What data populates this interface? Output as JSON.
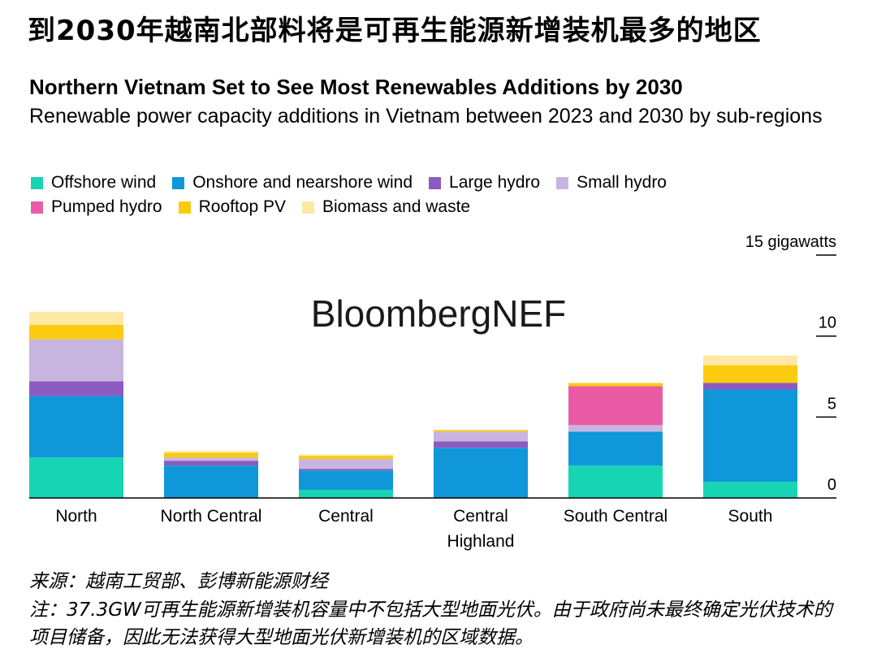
{
  "header": {
    "zh_title": "到2030年越南北部料将是可再生能源新增装机最多的地区",
    "en_title": "Northern Vietnam Set to See Most Renewables Additions by 2030",
    "subtitle": "Renewable power capacity additions in Vietnam between 2023 and 2030 by sub-regions"
  },
  "watermark": "BloombergNEF",
  "footer": {
    "source": "来源：越南工贸部、彭博新能源财经",
    "note": "注：37.3GW可再生能源新增装机容量中不包括大型地面光伏。由于政府尚未最终确定光伏技术的项目储备，因此无法获得大型地面光伏新增装机的区域数据。"
  },
  "chart_data": {
    "type": "bar",
    "stacked": true,
    "title": "Northern Vietnam Set to See Most Renewables Additions by 2030",
    "ylabel": "gigawatts",
    "y_unit_label": "15 gigawatts",
    "ylim": [
      0,
      15
    ],
    "yticks": [
      {
        "value": 0,
        "label": "0"
      },
      {
        "value": 5,
        "label": "5"
      },
      {
        "value": 10,
        "label": "10"
      },
      {
        "value": 15,
        "label": "15 gigawatts"
      }
    ],
    "categories": [
      "North",
      "North Central",
      "Central",
      "Central Highland",
      "South Central",
      "South"
    ],
    "category_lines": [
      [
        "North"
      ],
      [
        "North Central"
      ],
      [
        "Central"
      ],
      [
        "Central",
        "Highland"
      ],
      [
        "South Central"
      ],
      [
        "South"
      ]
    ],
    "series": [
      {
        "name": "Offshore wind",
        "color": "#17d5b4",
        "values": [
          2.5,
          0,
          0.5,
          0,
          2.0,
          1.0
        ]
      },
      {
        "name": "Onshore and nearshore wind",
        "color": "#1097d9",
        "values": [
          3.8,
          2.0,
          1.2,
          3.1,
          2.1,
          5.7
        ]
      },
      {
        "name": "Large hydro",
        "color": "#8c5bbf",
        "values": [
          0.9,
          0.3,
          0.1,
          0.4,
          0,
          0.4
        ]
      },
      {
        "name": "Small hydro",
        "color": "#c7b5e0",
        "values": [
          2.6,
          0.2,
          0.6,
          0.6,
          0.4,
          0
        ]
      },
      {
        "name": "Pumped hydro",
        "color": "#ea5ba6",
        "values": [
          0,
          0,
          0,
          0,
          2.4,
          0
        ]
      },
      {
        "name": "Rooftop PV",
        "color": "#fbcb12",
        "values": [
          0.9,
          0.3,
          0.2,
          0.1,
          0.2,
          1.1
        ]
      },
      {
        "name": "Biomass and waste",
        "color": "#fde9a5",
        "values": [
          0.8,
          0.1,
          0.1,
          0,
          0,
          0.6
        ]
      }
    ]
  }
}
